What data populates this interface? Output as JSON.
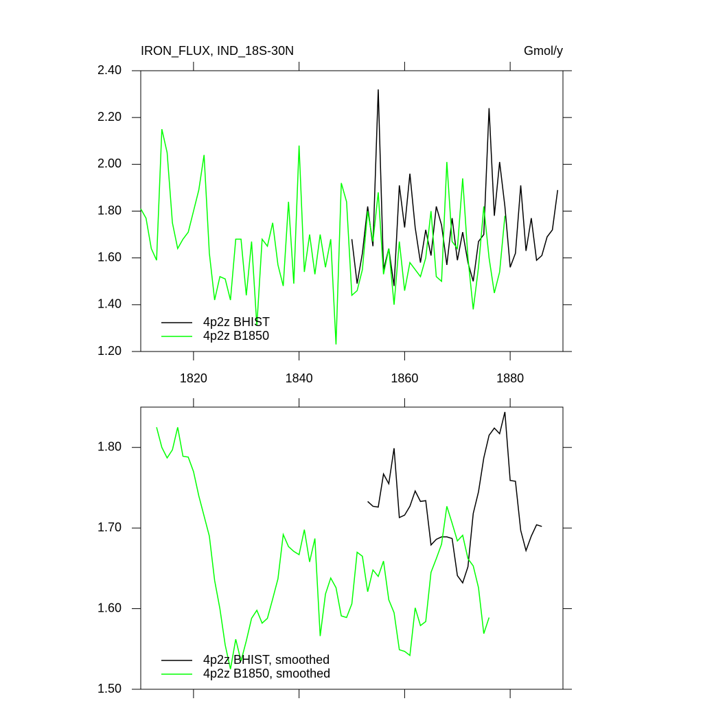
{
  "chart_data": [
    {
      "type": "line",
      "title": "IRON_FLUX, IND_18S-30N",
      "units": "Gmol/y",
      "x": [
        1810,
        1811,
        1812,
        1813,
        1814,
        1815,
        1816,
        1817,
        1818,
        1819,
        1820,
        1821,
        1822,
        1823,
        1824,
        1825,
        1826,
        1827,
        1828,
        1829,
        1830,
        1831,
        1832,
        1833,
        1834,
        1835,
        1836,
        1837,
        1838,
        1839,
        1840,
        1841,
        1842,
        1843,
        1844,
        1845,
        1846,
        1847,
        1848,
        1849,
        1850,
        1851,
        1852,
        1853,
        1854,
        1855,
        1856,
        1857,
        1858,
        1859,
        1860,
        1861,
        1862,
        1863,
        1864,
        1865,
        1866,
        1867,
        1868,
        1869,
        1870,
        1871,
        1872,
        1873,
        1874,
        1875,
        1876,
        1877,
        1878,
        1879,
        1880,
        1881,
        1882,
        1883,
        1884,
        1885,
        1886,
        1887,
        1888,
        1889
      ],
      "series": [
        {
          "name": "4p2z BHIST",
          "color": "#000000",
          "values": [
            null,
            null,
            null,
            null,
            null,
            null,
            null,
            null,
            null,
            null,
            null,
            null,
            null,
            null,
            null,
            null,
            null,
            null,
            null,
            null,
            null,
            null,
            null,
            null,
            null,
            null,
            null,
            null,
            null,
            null,
            null,
            null,
            null,
            null,
            null,
            null,
            null,
            null,
            null,
            null,
            1.68,
            1.49,
            1.62,
            1.82,
            1.65,
            2.32,
            1.55,
            1.64,
            1.48,
            1.91,
            1.73,
            1.96,
            1.73,
            1.58,
            1.72,
            1.61,
            1.82,
            1.74,
            1.57,
            1.77,
            1.59,
            1.71,
            1.58,
            1.5,
            1.67,
            1.7,
            2.24,
            1.78,
            2.01,
            1.82,
            1.56,
            1.62,
            1.91,
            1.63,
            1.77,
            1.59,
            1.61,
            1.69,
            1.72,
            1.89
          ]
        },
        {
          "name": "4p2z B1850",
          "color": "#00ff00",
          "values": [
            1.81,
            1.77,
            1.64,
            1.59,
            2.15,
            2.05,
            1.75,
            1.64,
            1.68,
            1.71,
            1.8,
            1.89,
            2.04,
            1.62,
            1.42,
            1.52,
            1.51,
            1.42,
            1.68,
            1.68,
            1.44,
            1.67,
            1.31,
            1.68,
            1.65,
            1.75,
            1.57,
            1.48,
            1.84,
            1.49,
            2.08,
            1.54,
            1.7,
            1.53,
            1.7,
            1.56,
            1.68,
            1.23,
            1.92,
            1.84,
            1.44,
            1.46,
            1.55,
            1.8,
            1.67,
            1.88,
            1.53,
            1.64,
            1.4,
            1.67,
            1.46,
            1.58,
            1.55,
            1.52,
            1.6,
            1.8,
            1.52,
            1.5,
            2.01,
            1.67,
            1.64,
            1.94,
            1.6,
            1.38,
            1.56,
            1.82,
            1.6,
            1.45,
            1.54,
            1.78,
            null,
            null,
            null,
            null,
            null,
            null,
            null,
            null,
            null,
            null
          ]
        }
      ],
      "xlim": [
        1810,
        1890
      ],
      "xticks": [
        1820,
        1840,
        1860,
        1880
      ],
      "ylim": [
        1.2,
        2.4
      ],
      "yticks": [
        {
          "value": 1.2,
          "label": "1.20"
        },
        {
          "value": 1.4,
          "label": "1.40"
        },
        {
          "value": 1.6,
          "label": "1.60"
        },
        {
          "value": 1.8,
          "label": "1.80"
        },
        {
          "value": 2.0,
          "label": "2.00"
        },
        {
          "value": 2.2,
          "label": "2.20"
        },
        {
          "value": 2.4,
          "label": "2.40"
        }
      ],
      "grid": false,
      "legend": "lower left"
    },
    {
      "type": "line",
      "x": [
        1813,
        1814,
        1815,
        1816,
        1817,
        1818,
        1819,
        1820,
        1821,
        1822,
        1823,
        1824,
        1825,
        1826,
        1827,
        1828,
        1829,
        1830,
        1831,
        1832,
        1833,
        1834,
        1835,
        1836,
        1837,
        1838,
        1839,
        1840,
        1841,
        1842,
        1843,
        1844,
        1845,
        1846,
        1847,
        1848,
        1849,
        1850,
        1851,
        1852,
        1853,
        1854,
        1855,
        1856,
        1857,
        1858,
        1859,
        1860,
        1861,
        1862,
        1863,
        1864,
        1865,
        1866,
        1867,
        1868,
        1869,
        1870,
        1871,
        1872,
        1873,
        1874,
        1875,
        1876,
        1877,
        1878,
        1879,
        1880,
        1881,
        1882,
        1883,
        1884,
        1885,
        1886
      ],
      "series": [
        {
          "name": "4p2z BHIST, smoothed",
          "color": "#000000",
          "values": [
            null,
            null,
            null,
            null,
            null,
            null,
            null,
            null,
            null,
            null,
            null,
            null,
            null,
            null,
            null,
            null,
            null,
            null,
            null,
            null,
            null,
            null,
            null,
            null,
            null,
            null,
            null,
            null,
            null,
            null,
            null,
            null,
            null,
            null,
            null,
            null,
            null,
            null,
            null,
            null,
            1.733,
            1.727,
            1.726,
            1.767,
            1.755,
            1.799,
            1.713,
            1.716,
            1.727,
            1.746,
            1.733,
            1.734,
            1.679,
            1.686,
            1.689,
            1.689,
            1.687,
            1.641,
            1.632,
            1.652,
            1.718,
            1.745,
            1.787,
            1.815,
            1.824,
            1.817,
            1.844,
            1.759,
            1.758,
            1.697,
            1.672,
            1.69,
            1.704,
            1.702
          ]
        },
        {
          "name": "4p2z B1850, smoothed",
          "color": "#00ff00",
          "values": [
            1.825,
            1.8,
            1.787,
            1.797,
            1.825,
            1.789,
            1.788,
            1.77,
            1.74,
            1.715,
            1.69,
            1.635,
            1.6,
            1.555,
            1.525,
            1.562,
            1.535,
            1.56,
            1.588,
            1.598,
            1.582,
            1.588,
            1.612,
            1.637,
            1.692,
            1.677,
            1.671,
            1.667,
            1.698,
            1.658,
            1.687,
            1.566,
            1.618,
            1.638,
            1.626,
            1.591,
            1.589,
            1.606,
            1.67,
            1.665,
            1.621,
            1.648,
            1.64,
            1.659,
            1.611,
            1.595,
            1.549,
            1.547,
            1.542,
            1.601,
            1.579,
            1.584,
            1.645,
            1.662,
            1.68,
            1.727,
            1.706,
            1.684,
            1.691,
            1.662,
            1.653,
            1.626,
            1.569,
            1.589,
            null,
            null,
            null,
            null,
            null,
            null,
            null,
            null,
            null,
            null
          ]
        }
      ],
      "xlim": [
        1810,
        1890
      ],
      "xticks": [
        1820,
        1840,
        1860,
        1880
      ],
      "ylim": [
        1.5,
        1.85
      ],
      "yticks": [
        {
          "value": 1.5,
          "label": "1.50"
        },
        {
          "value": 1.6,
          "label": "1.60"
        },
        {
          "value": 1.7,
          "label": "1.70"
        },
        {
          "value": 1.8,
          "label": "1.80"
        }
      ],
      "grid": false,
      "legend": "lower left"
    }
  ]
}
